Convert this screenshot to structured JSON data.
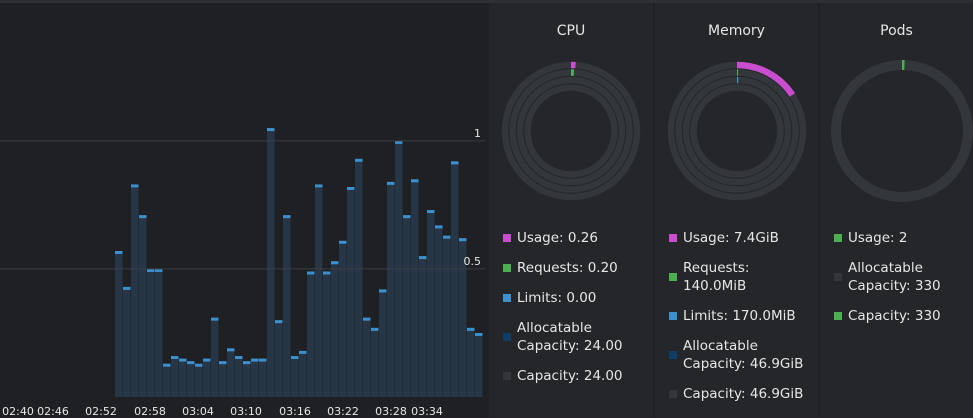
{
  "chart_data": {
    "type": "bar",
    "values": [
      0.57,
      0.43,
      0.83,
      0.71,
      0.5,
      0.5,
      0.13,
      0.16,
      0.15,
      0.14,
      0.13,
      0.15,
      0.31,
      0.14,
      0.19,
      0.16,
      0.14,
      0.15,
      0.15,
      1.05,
      0.3,
      0.71,
      0.16,
      0.18,
      0.49,
      0.83,
      0.49,
      0.53,
      0.61,
      0.82,
      0.93,
      0.31,
      0.27,
      0.42,
      0.84,
      1.0,
      0.71,
      0.85,
      0.55,
      0.73,
      0.67,
      0.63,
      0.92,
      0.62,
      0.27,
      0.25
    ],
    "color": "#3d90ce",
    "ylim": [
      0,
      1.55
    ],
    "yticks": [
      0.5,
      1
    ],
    "grid": true,
    "xtick_labels": [
      "02:40",
      "02:46",
      "02:52",
      "02:58",
      "03:04",
      "03:10",
      "03:16",
      "03:22",
      "03:28",
      "03:34"
    ]
  },
  "panels": [
    {
      "title": "CPU",
      "rings": [
        {
          "color": "#c94dcf",
          "share": 0.011
        },
        {
          "color": "#4caf50",
          "share": 0.008
        },
        {
          "color": "#3d90ce",
          "share": 0
        },
        {
          "color": "#0f3f66",
          "share": 0
        }
      ],
      "legend": [
        {
          "label": "Usage: 0.26",
          "color": "#c94dcf"
        },
        {
          "label": "Requests: 0.20",
          "color": "#4caf50"
        },
        {
          "label": "Limits: 0.00",
          "color": "#3d90ce"
        },
        {
          "label": "Allocatable Capacity: 24.00",
          "color": "#0f3f66"
        },
        {
          "label": "Capacity: 24.00",
          "color": "#33373b"
        }
      ]
    },
    {
      "title": "Memory",
      "rings": [
        {
          "color": "#c94dcf",
          "share": 0.158
        },
        {
          "color": "#4caf50",
          "share": 0.003
        },
        {
          "color": "#3d90ce",
          "share": 0.004
        },
        {
          "color": "#0f3f66",
          "share": 0
        }
      ],
      "legend": [
        {
          "label": "Usage: 7.4GiB",
          "color": "#c94dcf"
        },
        {
          "label": "Requests: 140.0MiB",
          "color": "#4caf50"
        },
        {
          "label": "Limits: 170.0MiB",
          "color": "#3d90ce"
        },
        {
          "label": "Allocatable Capacity: 46.9GiB",
          "color": "#0f3f66"
        },
        {
          "label": "Capacity: 46.9GiB",
          "color": "#33373b"
        }
      ]
    },
    {
      "title": "Pods",
      "rings": [
        {
          "color": "#4caf50",
          "share": 0.006
        }
      ],
      "legend": [
        {
          "label": "Usage: 2",
          "color": "#4caf50"
        },
        {
          "label": "Allocatable Capacity: 330",
          "color": "#33373b"
        },
        {
          "label": "Capacity: 330",
          "color": "#4caf50"
        }
      ]
    }
  ]
}
